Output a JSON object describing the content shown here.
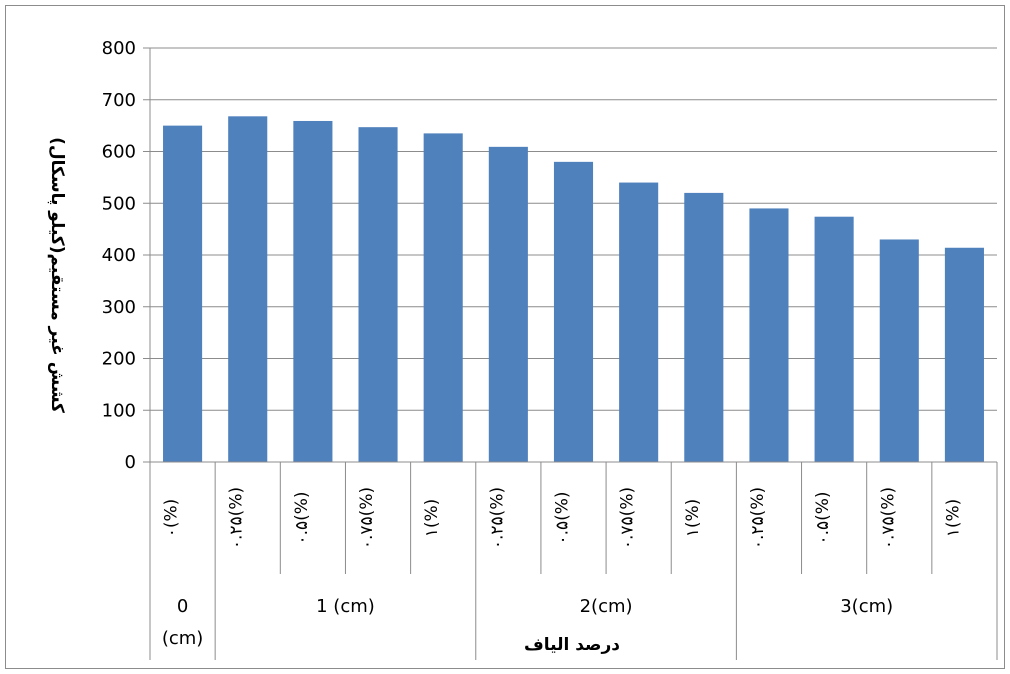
{
  "chart_data": {
    "type": "bar",
    "xlabel": "درصد الياف",
    "ylabel": "کشش غیر مستقیم(کیلو پاسکال)",
    "ylim": [
      0,
      800
    ],
    "yticks": [
      0,
      100,
      200,
      300,
      400,
      500,
      600,
      700,
      800
    ],
    "grid": true,
    "bar_color": "#4f81bd",
    "categories": [
      "(%)۰",
      "(%)۰.۲۵",
      "(%)۰.۵",
      "(%)۰.۷۵",
      "(%)۱",
      "(%)۰.۲۵",
      "(%)۰.۵",
      "(%)۰.۷۵",
      "(%)۱",
      "(%)۰.۲۵",
      "(%)۰.۵",
      "(%)۰.۷۵",
      "(%)۱"
    ],
    "groups": [
      {
        "label": "0 (cm)",
        "lines": [
          "0",
          "(cm)"
        ],
        "start": 0,
        "count": 1
      },
      {
        "label": "1 (cm)",
        "lines": [
          "1 (cm)"
        ],
        "start": 1,
        "count": 4
      },
      {
        "label": "2(cm)",
        "lines": [
          "2(cm)"
        ],
        "start": 5,
        "count": 4
      },
      {
        "label": "3(cm)",
        "lines": [
          "3(cm)"
        ],
        "start": 9,
        "count": 4
      }
    ],
    "values": [
      650,
      668,
      659,
      647,
      635,
      609,
      580,
      540,
      520,
      490,
      474,
      430,
      414
    ]
  }
}
